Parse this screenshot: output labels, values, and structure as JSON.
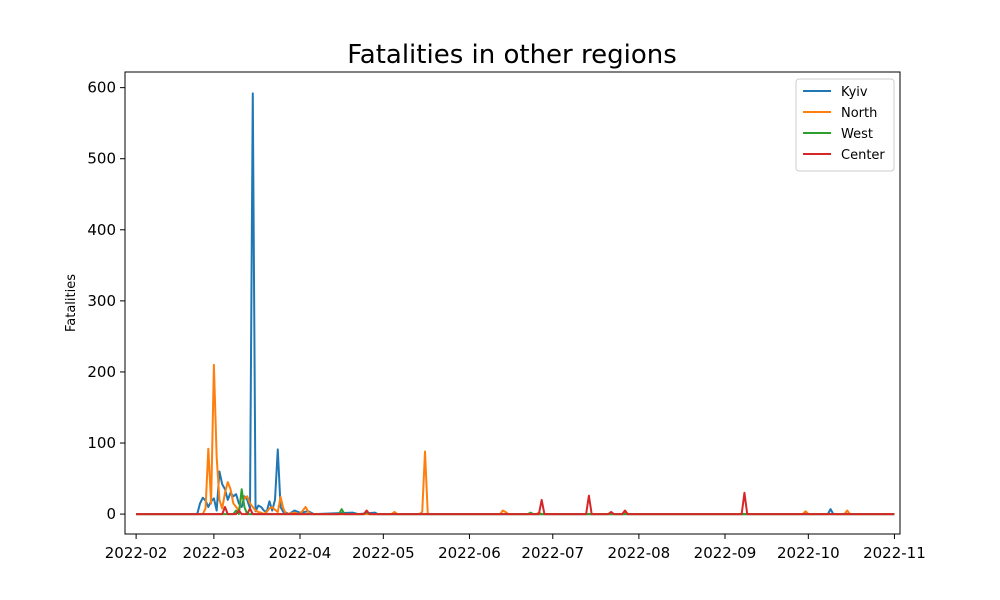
{
  "chart_data": {
    "type": "line",
    "title": "Fatalities in other regions",
    "xlabel": "",
    "ylabel": "Fatalities",
    "xlim": [
      "2022-01-28",
      "2022-11-03"
    ],
    "ylim": [
      -28,
      622
    ],
    "x_ticks": [
      "2022-02-01",
      "2022-03-01",
      "2022-04-01",
      "2022-05-01",
      "2022-06-01",
      "2022-07-01",
      "2022-08-01",
      "2022-09-01",
      "2022-10-01",
      "2022-11-01"
    ],
    "x_tick_labels": [
      "2022-02",
      "2022-03",
      "2022-04",
      "2022-05",
      "2022-06",
      "2022-07",
      "2022-08",
      "2022-09",
      "2022-10",
      "2022-11"
    ],
    "y_ticks": [
      0,
      100,
      200,
      300,
      400,
      500,
      600
    ],
    "y_tick_labels": [
      "0",
      "100",
      "200",
      "300",
      "400",
      "500",
      "600"
    ],
    "legend_position": "top-right",
    "grid": false,
    "series": [
      {
        "name": "Kyiv",
        "color": "#1f77b4",
        "points": [
          [
            "2022-02-01",
            0
          ],
          [
            "2022-02-23",
            0
          ],
          [
            "2022-02-24",
            15
          ],
          [
            "2022-02-25",
            23
          ],
          [
            "2022-02-26",
            19
          ],
          [
            "2022-02-27",
            10
          ],
          [
            "2022-02-28",
            18
          ],
          [
            "2022-03-01",
            22
          ],
          [
            "2022-03-02",
            5
          ],
          [
            "2022-03-03",
            60
          ],
          [
            "2022-03-04",
            42
          ],
          [
            "2022-03-05",
            35
          ],
          [
            "2022-03-06",
            20
          ],
          [
            "2022-03-07",
            30
          ],
          [
            "2022-03-08",
            25
          ],
          [
            "2022-03-09",
            28
          ],
          [
            "2022-03-10",
            15
          ],
          [
            "2022-03-11",
            10
          ],
          [
            "2022-03-12",
            25
          ],
          [
            "2022-03-13",
            20
          ],
          [
            "2022-03-14",
            8
          ],
          [
            "2022-03-15",
            592
          ],
          [
            "2022-03-16",
            4
          ],
          [
            "2022-03-17",
            12
          ],
          [
            "2022-03-18",
            10
          ],
          [
            "2022-03-19",
            5
          ],
          [
            "2022-03-20",
            3
          ],
          [
            "2022-03-21",
            18
          ],
          [
            "2022-03-22",
            5
          ],
          [
            "2022-03-23",
            20
          ],
          [
            "2022-03-24",
            91
          ],
          [
            "2022-03-25",
            10
          ],
          [
            "2022-03-26",
            3
          ],
          [
            "2022-03-27",
            2
          ],
          [
            "2022-03-28",
            0
          ],
          [
            "2022-03-30",
            5
          ],
          [
            "2022-04-01",
            2
          ],
          [
            "2022-04-04",
            4
          ],
          [
            "2022-04-06",
            0
          ],
          [
            "2022-04-20",
            2
          ],
          [
            "2022-04-22",
            0
          ],
          [
            "2022-04-28",
            2
          ],
          [
            "2022-04-29",
            0
          ],
          [
            "2022-10-08",
            0
          ],
          [
            "2022-10-09",
            7
          ],
          [
            "2022-10-10",
            0
          ],
          [
            "2022-11-01",
            0
          ]
        ]
      },
      {
        "name": "North",
        "color": "#ff7f0e",
        "points": [
          [
            "2022-02-01",
            0
          ],
          [
            "2022-02-25",
            0
          ],
          [
            "2022-02-26",
            8
          ],
          [
            "2022-02-27",
            92
          ],
          [
            "2022-02-28",
            15
          ],
          [
            "2022-03-01",
            210
          ],
          [
            "2022-03-02",
            80
          ],
          [
            "2022-03-03",
            20
          ],
          [
            "2022-03-04",
            8
          ],
          [
            "2022-03-05",
            30
          ],
          [
            "2022-03-06",
            45
          ],
          [
            "2022-03-07",
            35
          ],
          [
            "2022-03-08",
            15
          ],
          [
            "2022-03-09",
            10
          ],
          [
            "2022-03-10",
            5
          ],
          [
            "2022-03-11",
            28
          ],
          [
            "2022-03-12",
            22
          ],
          [
            "2022-03-13",
            25
          ],
          [
            "2022-03-14",
            15
          ],
          [
            "2022-03-15",
            10
          ],
          [
            "2022-03-16",
            5
          ],
          [
            "2022-03-17",
            3
          ],
          [
            "2022-03-18",
            2
          ],
          [
            "2022-03-19",
            0
          ],
          [
            "2022-03-20",
            3
          ],
          [
            "2022-03-21",
            8
          ],
          [
            "2022-03-22",
            10
          ],
          [
            "2022-03-23",
            6
          ],
          [
            "2022-03-24",
            3
          ],
          [
            "2022-03-25",
            24
          ],
          [
            "2022-03-26",
            8
          ],
          [
            "2022-03-27",
            0
          ],
          [
            "2022-03-30",
            2
          ],
          [
            "2022-04-01",
            0
          ],
          [
            "2022-04-02",
            5
          ],
          [
            "2022-04-03",
            10
          ],
          [
            "2022-04-04",
            3
          ],
          [
            "2022-04-05",
            0
          ],
          [
            "2022-05-04",
            0
          ],
          [
            "2022-05-05",
            3
          ],
          [
            "2022-05-06",
            0
          ],
          [
            "2022-05-14",
            0
          ],
          [
            "2022-05-15",
            3
          ],
          [
            "2022-05-16",
            88
          ],
          [
            "2022-05-17",
            0
          ],
          [
            "2022-06-12",
            0
          ],
          [
            "2022-06-13",
            5
          ],
          [
            "2022-06-14",
            3
          ],
          [
            "2022-06-15",
            0
          ],
          [
            "2022-06-25",
            0
          ],
          [
            "2022-06-26",
            2
          ],
          [
            "2022-06-27",
            0
          ],
          [
            "2022-07-26",
            0
          ],
          [
            "2022-07-27",
            2
          ],
          [
            "2022-07-28",
            0
          ],
          [
            "2022-09-29",
            0
          ],
          [
            "2022-09-30",
            4
          ],
          [
            "2022-10-01",
            0
          ],
          [
            "2022-10-14",
            0
          ],
          [
            "2022-10-15",
            5
          ],
          [
            "2022-10-16",
            0
          ],
          [
            "2022-11-01",
            0
          ]
        ]
      },
      {
        "name": "West",
        "color": "#2ca02c",
        "points": [
          [
            "2022-02-01",
            0
          ],
          [
            "2022-03-08",
            0
          ],
          [
            "2022-03-09",
            5
          ],
          [
            "2022-03-10",
            0
          ],
          [
            "2022-03-11",
            35
          ],
          [
            "2022-03-12",
            10
          ],
          [
            "2022-03-13",
            0
          ],
          [
            "2022-04-15",
            0
          ],
          [
            "2022-04-16",
            7
          ],
          [
            "2022-04-17",
            0
          ],
          [
            "2022-04-24",
            0
          ],
          [
            "2022-04-25",
            3
          ],
          [
            "2022-04-26",
            0
          ],
          [
            "2022-06-22",
            0
          ],
          [
            "2022-06-23",
            2
          ],
          [
            "2022-06-24",
            0
          ],
          [
            "2022-11-01",
            0
          ]
        ]
      },
      {
        "name": "Center",
        "color": "#d62728",
        "points": [
          [
            "2022-02-01",
            0
          ],
          [
            "2022-03-04",
            0
          ],
          [
            "2022-03-05",
            10
          ],
          [
            "2022-03-06",
            0
          ],
          [
            "2022-03-09",
            0
          ],
          [
            "2022-03-10",
            5
          ],
          [
            "2022-03-11",
            0
          ],
          [
            "2022-03-13",
            0
          ],
          [
            "2022-03-14",
            8
          ],
          [
            "2022-03-15",
            0
          ],
          [
            "2022-04-24",
            0
          ],
          [
            "2022-04-25",
            5
          ],
          [
            "2022-04-26",
            0
          ],
          [
            "2022-06-26",
            0
          ],
          [
            "2022-06-27",
            20
          ],
          [
            "2022-06-28",
            0
          ],
          [
            "2022-07-13",
            0
          ],
          [
            "2022-07-14",
            26
          ],
          [
            "2022-07-15",
            0
          ],
          [
            "2022-07-21",
            0
          ],
          [
            "2022-07-22",
            3
          ],
          [
            "2022-07-23",
            0
          ],
          [
            "2022-07-26",
            0
          ],
          [
            "2022-07-27",
            5
          ],
          [
            "2022-07-28",
            0
          ],
          [
            "2022-09-07",
            0
          ],
          [
            "2022-09-08",
            30
          ],
          [
            "2022-09-09",
            0
          ],
          [
            "2022-11-01",
            0
          ]
        ]
      }
    ]
  }
}
